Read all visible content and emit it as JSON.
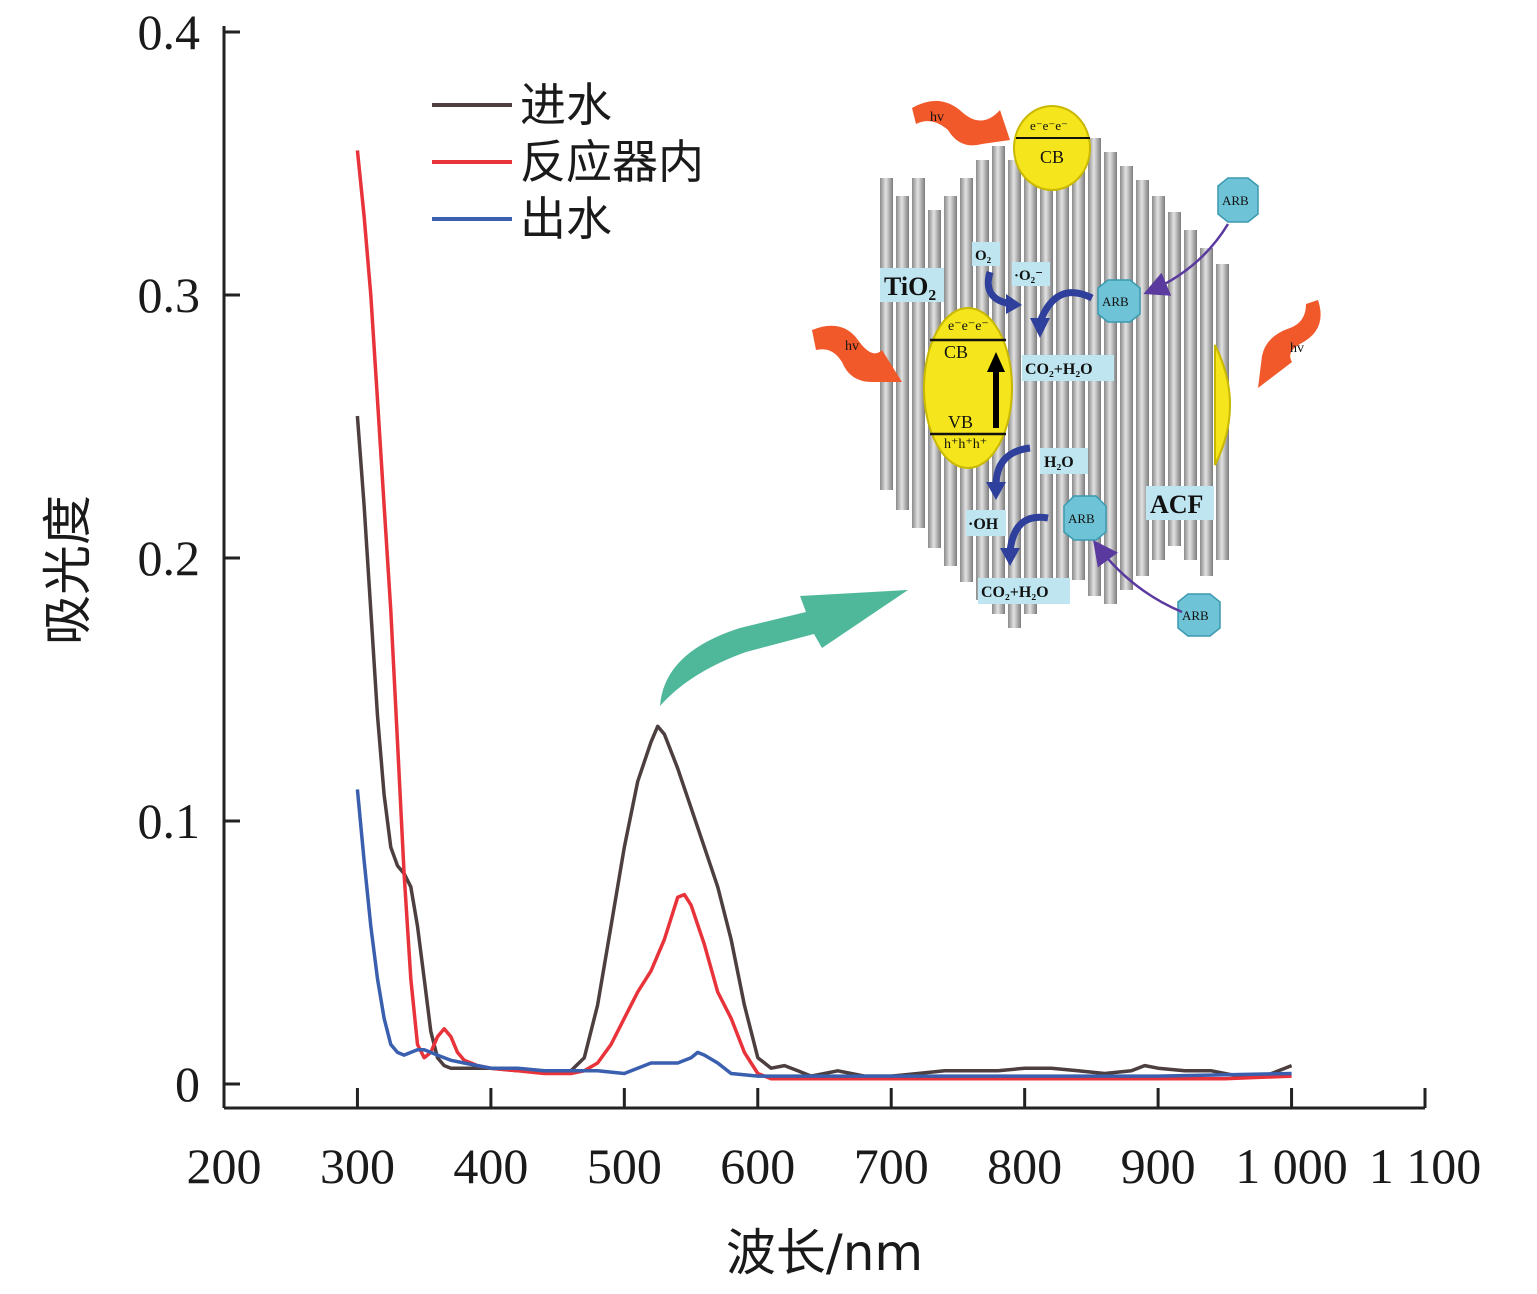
{
  "chart_data": {
    "type": "line",
    "xlabel": "波长/nm",
    "ylabel": "吸光度",
    "xlim": [
      200,
      1100
    ],
    "ylim": [
      0,
      0.4
    ],
    "xticks": [
      200,
      300,
      400,
      500,
      600,
      700,
      800,
      900,
      1000,
      1100
    ],
    "xtick_labels": [
      "200",
      "300",
      "400",
      "500",
      "600",
      "700",
      "800",
      "900",
      "1 000",
      "1 100"
    ],
    "yticks": [
      0,
      0.1,
      0.2,
      0.3,
      0.4
    ],
    "ytick_labels": [
      "0",
      "0.1",
      "0.2",
      "0.3",
      "0.4"
    ],
    "legend_position": "top-left",
    "series": [
      {
        "name": "进水",
        "color": "#4d3f3f",
        "x": [
          300,
          305,
          310,
          315,
          320,
          325,
          330,
          335,
          340,
          345,
          350,
          355,
          360,
          365,
          370,
          380,
          390,
          400,
          420,
          440,
          460,
          470,
          480,
          490,
          500,
          510,
          520,
          525,
          530,
          540,
          550,
          560,
          570,
          580,
          590,
          600,
          610,
          620,
          630,
          640,
          650,
          660,
          670,
          680,
          700,
          720,
          740,
          760,
          780,
          800,
          820,
          840,
          860,
          880,
          890,
          900,
          920,
          940,
          960,
          980,
          1000
        ],
        "y": [
          0.254,
          0.22,
          0.18,
          0.14,
          0.11,
          0.09,
          0.083,
          0.08,
          0.075,
          0.06,
          0.04,
          0.02,
          0.01,
          0.007,
          0.006,
          0.006,
          0.006,
          0.006,
          0.005,
          0.005,
          0.005,
          0.01,
          0.03,
          0.06,
          0.09,
          0.115,
          0.13,
          0.136,
          0.133,
          0.12,
          0.105,
          0.09,
          0.075,
          0.055,
          0.03,
          0.01,
          0.006,
          0.007,
          0.005,
          0.003,
          0.004,
          0.005,
          0.004,
          0.003,
          0.003,
          0.004,
          0.005,
          0.005,
          0.005,
          0.006,
          0.006,
          0.005,
          0.004,
          0.005,
          0.007,
          0.006,
          0.005,
          0.005,
          0.003,
          0.003,
          0.007
        ]
      },
      {
        "name": "反应器内",
        "color": "#e8333a",
        "x": [
          300,
          305,
          310,
          315,
          320,
          325,
          330,
          335,
          340,
          345,
          350,
          355,
          360,
          365,
          370,
          375,
          380,
          390,
          400,
          420,
          440,
          460,
          470,
          480,
          490,
          500,
          510,
          520,
          530,
          540,
          545,
          550,
          560,
          570,
          580,
          590,
          600,
          610,
          620,
          640,
          660,
          680,
          700,
          750,
          800,
          850,
          900,
          950,
          1000
        ],
        "y": [
          0.355,
          0.33,
          0.3,
          0.26,
          0.22,
          0.18,
          0.13,
          0.08,
          0.04,
          0.015,
          0.01,
          0.012,
          0.018,
          0.021,
          0.018,
          0.012,
          0.009,
          0.007,
          0.006,
          0.005,
          0.004,
          0.004,
          0.005,
          0.008,
          0.015,
          0.025,
          0.035,
          0.043,
          0.055,
          0.071,
          0.072,
          0.068,
          0.053,
          0.035,
          0.025,
          0.012,
          0.004,
          0.002,
          0.002,
          0.002,
          0.002,
          0.002,
          0.002,
          0.002,
          0.002,
          0.002,
          0.002,
          0.002,
          0.003
        ]
      },
      {
        "name": "出水",
        "color": "#3a5fae",
        "x": [
          300,
          305,
          310,
          315,
          320,
          325,
          330,
          335,
          340,
          345,
          350,
          355,
          360,
          365,
          370,
          380,
          390,
          400,
          420,
          440,
          460,
          480,
          500,
          510,
          520,
          530,
          540,
          550,
          555,
          560,
          570,
          580,
          600,
          650,
          700,
          800,
          900,
          1000
        ],
        "y": [
          0.112,
          0.085,
          0.06,
          0.04,
          0.025,
          0.015,
          0.012,
          0.011,
          0.012,
          0.013,
          0.013,
          0.012,
          0.011,
          0.01,
          0.009,
          0.008,
          0.007,
          0.006,
          0.006,
          0.005,
          0.005,
          0.005,
          0.004,
          0.006,
          0.008,
          0.008,
          0.008,
          0.01,
          0.012,
          0.011,
          0.008,
          0.004,
          0.003,
          0.003,
          0.003,
          0.003,
          0.003,
          0.004
        ]
      }
    ]
  },
  "inset": {
    "labels": {
      "tio2": "TiO₂",
      "acf": "ACF",
      "cb": "CB",
      "vb": "VB",
      "electrons": "e⁻e⁻e⁻",
      "holes": "h⁺h⁺h⁺",
      "o2": "O₂",
      "o2_radical": "·O₂⁻",
      "co2_h2o_1": "CO₂+H₂O",
      "co2_h2o_2": "CO₂+H₂O",
      "h2o": "H₂O",
      "oh": "·OH",
      "hv1": "hv",
      "hv2": "hv",
      "hv3": "hv",
      "arb1": "ARB",
      "arb2": "ARB",
      "arb3": "ARB",
      "arb4": "ARB"
    },
    "colors": {
      "fiber": "#a9a9a9",
      "catalyst": "#f4e51c",
      "arb": "#6fc3d6",
      "label_box": "#bfe6f0",
      "hv_arrow": "#f1592a",
      "flow_arrow": "#2e3f9c",
      "big_arrow": "#4fb89a"
    }
  }
}
